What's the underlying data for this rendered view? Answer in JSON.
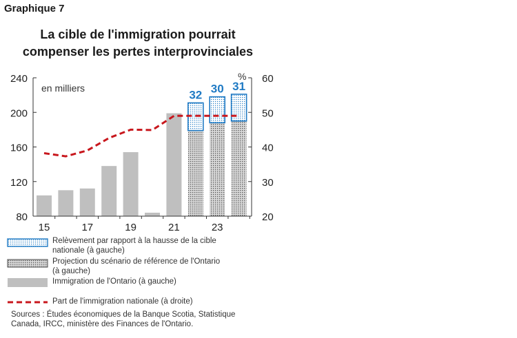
{
  "header": {
    "graphique": "Graphique 7",
    "title_line1": "La cible de l'immigration pourrait",
    "title_line2": "compenser les pertes interprovinciales"
  },
  "chart_data": {
    "type": "bar",
    "x": [
      15,
      16,
      17,
      18,
      19,
      20,
      21,
      22,
      23,
      24
    ],
    "x_tick_labels": [
      "15",
      "17",
      "19",
      "21",
      "23"
    ],
    "left_axis": {
      "ylim": [
        80,
        240
      ],
      "ticks": [
        80,
        120,
        160,
        200,
        240
      ],
      "label": "en milliers"
    },
    "right_axis": {
      "ylim": [
        20,
        60
      ],
      "ticks": [
        20,
        30,
        40,
        50,
        60
      ],
      "unit": "%"
    },
    "series": [
      {
        "name": "Immigration de l'Ontario (à gauche)",
        "kind": "bar",
        "axis": "left",
        "color": "#bfbfbf",
        "values": [
          104,
          110,
          112,
          138,
          154,
          84,
          199,
          null,
          null,
          null
        ]
      },
      {
        "name": "Projection du scénario de référence de l'Ontario (à gauche)",
        "kind": "bar",
        "axis": "left",
        "color": "#d9d9d9",
        "values": [
          null,
          null,
          null,
          null,
          null,
          null,
          null,
          179,
          188,
          190
        ]
      },
      {
        "name": "Relèvement par rapport à la hausse de la cible nationale (à gauche)",
        "kind": "bar_stack",
        "axis": "left",
        "color": "#1f7ac4",
        "values": [
          null,
          null,
          null,
          null,
          null,
          null,
          null,
          32,
          30,
          31
        ]
      },
      {
        "name": "Part de l'immigration nationale (à droite)",
        "kind": "line",
        "axis": "right",
        "color": "#c8171d",
        "values": [
          38.2,
          37.3,
          39.0,
          42.6,
          45.0,
          44.9,
          49.0,
          49.0,
          49.0,
          49.0
        ]
      }
    ],
    "annotations": [
      "32",
      "30",
      "31"
    ],
    "grid": false
  },
  "legend": {
    "uplift_line1": "Relèvement par rapport à la hausse de la cible",
    "uplift_line2": "nationale (à gauche)",
    "projection_line1": "Projection du scénario de référence de l'Ontario",
    "projection_line2": "(à gauche)",
    "immigration": "Immigration de l'Ontario (à gauche)",
    "share": "Part de l'immigration nationale (à droite)"
  },
  "sources": {
    "line1": "Sources : Études économiques de la Banque Scotia, Statistique",
    "line2": "Canada, IRCC, ministère des Finances de l'Ontario."
  }
}
